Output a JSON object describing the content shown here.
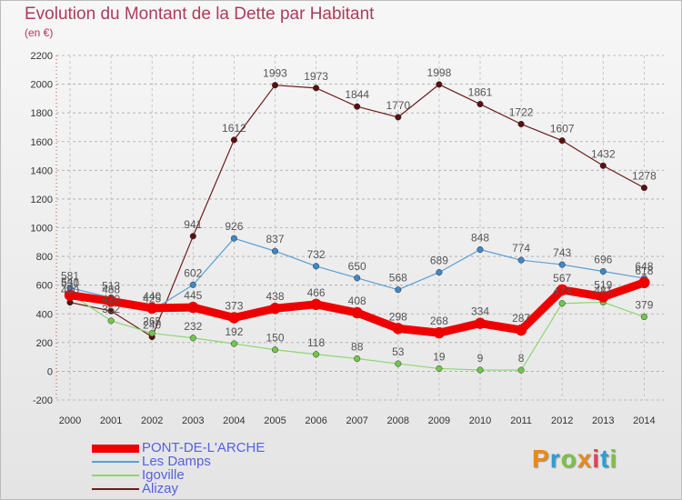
{
  "title": "Evolution du Montant de la Dette par Habitant",
  "subtitle": "(en €)",
  "logo": {
    "text": "Proxiti",
    "colors": [
      "#e88a1a",
      "#2a9fd6",
      "#7cc242",
      "#e88a1a",
      "#e0445a",
      "#2a9fd6",
      "#7cc242"
    ]
  },
  "chart_data": {
    "type": "line",
    "title": "Evolution du Montant de la Dette par Habitant",
    "ylabel": "(en €)",
    "xlabel": "",
    "x": [
      "2000",
      "2001",
      "2002",
      "2003",
      "2004",
      "2005",
      "2006",
      "2007",
      "2008",
      "2009",
      "2010",
      "2011",
      "2012",
      "2013",
      "2014"
    ],
    "ylim": [
      -200,
      2200
    ],
    "yticks": [
      -200,
      0,
      200,
      400,
      600,
      800,
      1000,
      1200,
      1400,
      1600,
      1800,
      2000,
      2200
    ],
    "grid": "horizontal-dashed",
    "legend_position": "bottom-left",
    "series": [
      {
        "name": "Alizay",
        "color": "#6b1c1c",
        "marker_color": "#5a1010",
        "width": 1.2,
        "values": [
          480,
          420,
          240,
          941,
          1612,
          1993,
          1973,
          1844,
          1770,
          1998,
          1861,
          1722,
          1607,
          1432,
          1278
        ]
      },
      {
        "name": "Les Damps",
        "color": "#5a9fd4",
        "marker_color": "#3f87c6",
        "width": 1.2,
        "values": [
          581,
          513,
          425,
          602,
          926,
          837,
          732,
          650,
          568,
          689,
          848,
          774,
          743,
          696,
          648
        ]
      },
      {
        "name": "Igoville",
        "color": "#8fd672",
        "marker_color": "#72c64a",
        "width": 1.2,
        "values": [
          541,
          352,
          265,
          232,
          192,
          150,
          118,
          88,
          53,
          19,
          9,
          8,
          473,
          481,
          379
        ]
      },
      {
        "name": "PONT-DE-L'ARCHE",
        "color": "#ee0000",
        "marker_color": "#ee0000",
        "width": 9,
        "values": [
          530,
          488,
          440,
          445,
          373,
          438,
          466,
          408,
          298,
          268,
          334,
          287,
          567,
          519,
          618
        ]
      }
    ],
    "legend_order": [
      "PONT-DE-L'ARCHE",
      "Les Damps",
      "Igoville",
      "Alizay"
    ]
  }
}
